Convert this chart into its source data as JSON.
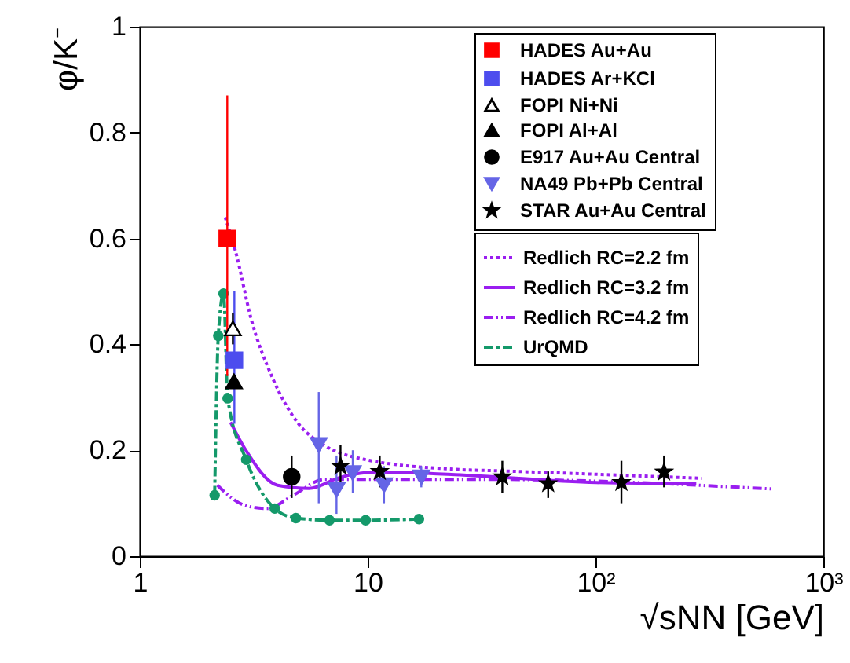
{
  "chart_data": {
    "type": "scatter",
    "xlabel": "√sNN [GeV]",
    "ylabel": "φ/K⁻",
    "log": "x",
    "xlim": [
      1,
      1000
    ],
    "ylim": [
      0,
      1
    ],
    "xticks": [
      1,
      10,
      {
        "value": 100,
        "label": "10²"
      },
      {
        "value": 1000,
        "label": "10³"
      }
    ],
    "yticks": [
      0,
      0.2,
      0.4,
      0.6,
      0.8,
      1
    ],
    "legend": "top right",
    "grid": false,
    "series": [
      {
        "name": "HADES Au+Au",
        "color": "#ff0000",
        "marker": "square",
        "x": [
          2.42
        ],
        "values": [
          0.6
        ],
        "errors": [
          [
            0.34,
            0.87
          ]
        ]
      },
      {
        "name": "HADES Ar+KCl",
        "color": "#4d4dee",
        "marker": "square",
        "x": [
          2.6
        ],
        "values": [
          0.37
        ],
        "errors": [
          [
            0.25,
            0.5
          ]
        ]
      },
      {
        "name": "FOPI Ni+Ni",
        "color": "#000000",
        "marker": "triangle_open",
        "x": [
          2.56
        ],
        "values": [
          0.43
        ],
        "errors": [
          [
            0.4,
            0.46
          ]
        ]
      },
      {
        "name": "FOPI Al+Al",
        "color": "#000000",
        "marker": "triangle",
        "x": [
          2.59
        ],
        "values": [
          0.33
        ],
        "errors": [
          null
        ]
      },
      {
        "name": "E917 Au+Au Central",
        "color": "#000000",
        "marker": "circle",
        "x": [
          4.64
        ],
        "values": [
          0.15
        ],
        "errors": [
          [
            0.11,
            0.19
          ]
        ]
      },
      {
        "name": "NA49 Pb+Pb Central",
        "color": "#6565e6",
        "marker": "triangle_down",
        "x": [
          6.1,
          7.3,
          8.6,
          11.8,
          17.2
        ],
        "values": [
          0.21,
          0.125,
          0.157,
          0.134,
          0.149
        ],
        "errors": [
          [
            0.1,
            0.31
          ],
          [
            0.08,
            0.19
          ],
          [
            0.12,
            0.2
          ],
          [
            0.1,
            0.17
          ],
          [
            0.13,
            0.17
          ]
        ]
      },
      {
        "name": "STAR Au+Au Central",
        "color": "#000000",
        "marker": "star",
        "x": [
          7.6,
          11.3,
          39,
          62,
          130,
          200
        ],
        "values": [
          0.17,
          0.16,
          0.15,
          0.137,
          0.139,
          0.159
        ],
        "errors": [
          [
            0.13,
            0.21
          ],
          [
            0.13,
            0.19
          ],
          [
            0.12,
            0.18
          ],
          [
            0.11,
            0.16
          ],
          [
            0.1,
            0.18
          ],
          [
            0.13,
            0.19
          ]
        ]
      },
      {
        "name": "Redlich RC=2.2 fm",
        "type": "line",
        "color": "#9a1ef0",
        "line_style": "dotted",
        "x": [
          2.37,
          2.63,
          3.09,
          3.81,
          4.97,
          6.47,
          9.37,
          24.2,
          39,
          294
        ],
        "values": [
          0.64,
          0.576,
          0.446,
          0.338,
          0.25,
          0.209,
          0.184,
          0.164,
          0.161,
          0.147
        ]
      },
      {
        "name": "Redlich RC=3.2 fm",
        "type": "line",
        "color": "#9a1ef0",
        "line_style": "solid",
        "x": [
          2.5,
          2.93,
          4.02,
          5.53,
          7.6,
          11,
          24.2,
          101,
          277
        ],
        "values": [
          0.253,
          0.199,
          0.134,
          0.128,
          0.149,
          0.159,
          0.154,
          0.139,
          0.137
        ]
      },
      {
        "name": "Redlich RC=4.2 fm",
        "type": "line",
        "color": "#9a1ef0",
        "line_style": "dashdotdot",
        "x": [
          2.19,
          2.93,
          3.62,
          4.71,
          6.47,
          11,
          35,
          595
        ],
        "values": [
          0.134,
          0.095,
          0.09,
          0.115,
          0.145,
          0.145,
          0.145,
          0.127
        ]
      },
      {
        "name": "UrQMD",
        "type": "line",
        "color": "#14996a",
        "line_style": "dashdot",
        "marker": "circle",
        "x": [
          2.13,
          2.21,
          2.33,
          2.43,
          2.93,
          3.91,
          4.84,
          6.8,
          9.8,
          16.8
        ],
        "values": [
          0.115,
          0.416,
          0.496,
          0.298,
          0.182,
          0.09,
          0.072,
          0.068,
          0.068,
          0.07
        ]
      }
    ]
  }
}
